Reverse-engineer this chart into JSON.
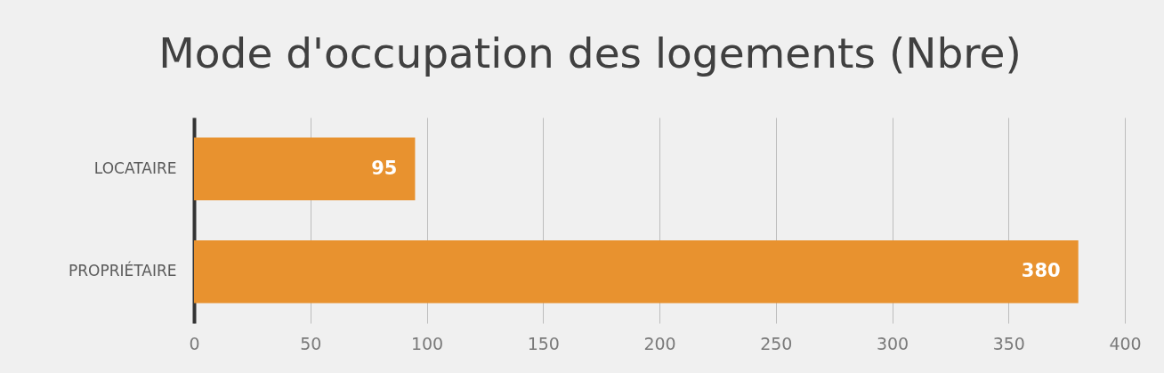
{
  "chart_data": {
    "type": "bar",
    "orientation": "horizontal",
    "title": "Mode d'occupation des logements (Nbre)",
    "categories": [
      "LOCATAIRE",
      "PROPRIÉTAIRE"
    ],
    "values": [
      95,
      380
    ],
    "color": "#e8922f",
    "xlim": [
      0,
      400
    ],
    "xticks": [
      0,
      50,
      100,
      150,
      200,
      250,
      300,
      350,
      400
    ],
    "grid": "x",
    "data_labels": true
  }
}
